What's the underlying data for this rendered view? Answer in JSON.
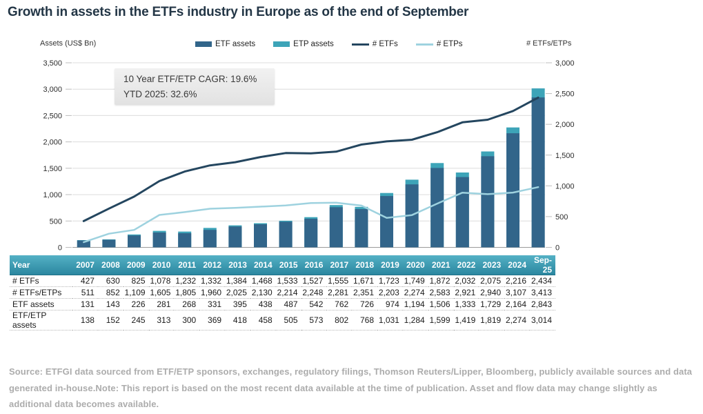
{
  "page": {
    "title": "Growth in assets in the ETFs industry in Europe as of the end of September"
  },
  "chart": {
    "left_axis_title": "Assets (US$ Bn)",
    "right_axis_title": "# ETFs/ETPs",
    "legend": [
      {
        "label": "ETF assets",
        "swatch": "bar",
        "color": "#32658a"
      },
      {
        "label": "ETP assets",
        "swatch": "bar",
        "color": "#3da4b8"
      },
      {
        "label": "# ETFs",
        "swatch": "line",
        "color": "#24465f"
      },
      {
        "label": "# ETPs",
        "swatch": "line",
        "color": "#9ed2df"
      }
    ],
    "annotation": {
      "line1": "10 Year ETF/ETP CAGR: 19.6%",
      "line2": "YTD 2025: 32.6%"
    },
    "colors": {
      "gridline": "#dcdcdc",
      "baseline": "#9a9a9a",
      "tick": "#bdbdbd",
      "tick_label": "#2b2b2b"
    }
  },
  "chart_data": {
    "type": "bar",
    "subtype": "combo dual-axis: overlapped bars (left axis, US$ Bn) + lines (right axis, counts)",
    "title": "Growth in assets in the ETFs industry in Europe as of the end of September",
    "categories": [
      "2007",
      "2008",
      "2009",
      "2010",
      "2011",
      "2012",
      "2013",
      "2014",
      "2015",
      "2016",
      "2017",
      "2018",
      "2019",
      "2020",
      "2021",
      "2022",
      "2023",
      "2024",
      "Sep-25"
    ],
    "series": [
      {
        "name": "ETF/ETP assets",
        "legend_label": "ETP assets",
        "plot": "bar",
        "axis": "left",
        "color": "#3da4b8",
        "values": [
          138,
          152,
          245,
          313,
          300,
          369,
          418,
          458,
          505,
          573,
          802,
          768,
          1031,
          1284,
          1599,
          1419,
          1819,
          2274,
          3014
        ]
      },
      {
        "name": "ETF assets",
        "legend_label": "ETF assets",
        "plot": "bar",
        "axis": "left",
        "color": "#32658a",
        "values": [
          131,
          143,
          226,
          281,
          268,
          331,
          395,
          438,
          487,
          542,
          762,
          726,
          974,
          1194,
          1506,
          1333,
          1729,
          2164,
          2843
        ]
      },
      {
        "name": "# ETFs",
        "legend_label": "# ETFs",
        "plot": "line",
        "axis": "right",
        "color": "#24465f",
        "values": [
          427,
          630,
          825,
          1078,
          1232,
          1332,
          1384,
          1468,
          1533,
          1527,
          1555,
          1671,
          1723,
          1749,
          1872,
          2032,
          2075,
          2216,
          2434
        ]
      },
      {
        "name": "# ETPs",
        "legend_label": "# ETPs",
        "plot": "line",
        "axis": "right",
        "color": "#9ed2df",
        "values": [
          84,
          222,
          284,
          527,
          573,
          628,
          641,
          662,
          681,
          721,
          726,
          680,
          480,
          525,
          711,
          889,
          865,
          891,
          979
        ]
      }
    ],
    "left_axis": {
      "title": "Assets (US$ Bn)",
      "min": 0,
      "max": 3500,
      "ticks": [
        0,
        500,
        1000,
        1500,
        2000,
        2500,
        3000,
        3500
      ]
    },
    "right_axis": {
      "title": "# ETFs/ETPs",
      "min": 0,
      "max": 3000,
      "ticks": [
        0,
        500,
        1000,
        1500,
        2000,
        2500,
        3000
      ]
    },
    "grid": true,
    "legend_position": "top",
    "annotations": [
      "10 Year ETF/ETP CAGR: 19.6%",
      "YTD 2025: 32.6%"
    ]
  },
  "table": {
    "header": [
      "Year",
      "2007",
      "2008",
      "2009",
      "2010",
      "2011",
      "2012",
      "2013",
      "2014",
      "2015",
      "2016",
      "2017",
      "2018",
      "2019",
      "2020",
      "2021",
      "2022",
      "2023",
      "2024",
      "Sep-25"
    ],
    "rows": [
      {
        "label": "# ETFs",
        "values": [
          "427",
          "630",
          "825",
          "1,078",
          "1,232",
          "1,332",
          "1,384",
          "1,468",
          "1,533",
          "1,527",
          "1,555",
          "1,671",
          "1,723",
          "1,749",
          "1,872",
          "2,032",
          "2,075",
          "2,216",
          "2,434"
        ]
      },
      {
        "label": "# ETFs/ETPs",
        "values": [
          "511",
          "852",
          "1,109",
          "1,605",
          "1,805",
          "1,960",
          "2,025",
          "2,130",
          "2,214",
          "2,248",
          "2,281",
          "2,351",
          "2,203",
          "2,274",
          "2,583",
          "2,921",
          "2,940",
          "3,107",
          "3,413"
        ]
      },
      {
        "label": "ETF assets",
        "values": [
          "131",
          "143",
          "226",
          "281",
          "268",
          "331",
          "395",
          "438",
          "487",
          "542",
          "762",
          "726",
          "974",
          "1,194",
          "1,506",
          "1,333",
          "1,729",
          "2,164",
          "2,843"
        ]
      },
      {
        "label": "ETF/ETP assets",
        "values": [
          "138",
          "152",
          "245",
          "313",
          "300",
          "369",
          "418",
          "458",
          "505",
          "573",
          "802",
          "768",
          "1,031",
          "1,284",
          "1,599",
          "1,419",
          "1,819",
          "2,274",
          "3,014"
        ]
      }
    ]
  },
  "footer": {
    "source_note": "Source: ETFGI data sourced from ETF/ETP sponsors, exchanges, regulatory filings, Thomson Reuters/Lipper, Bloomberg, publicly available sources and data generated in-house.Note: This report is based on the most recent data available at the time of publication. Asset and flow data may change slightly as additional data becomes available."
  }
}
